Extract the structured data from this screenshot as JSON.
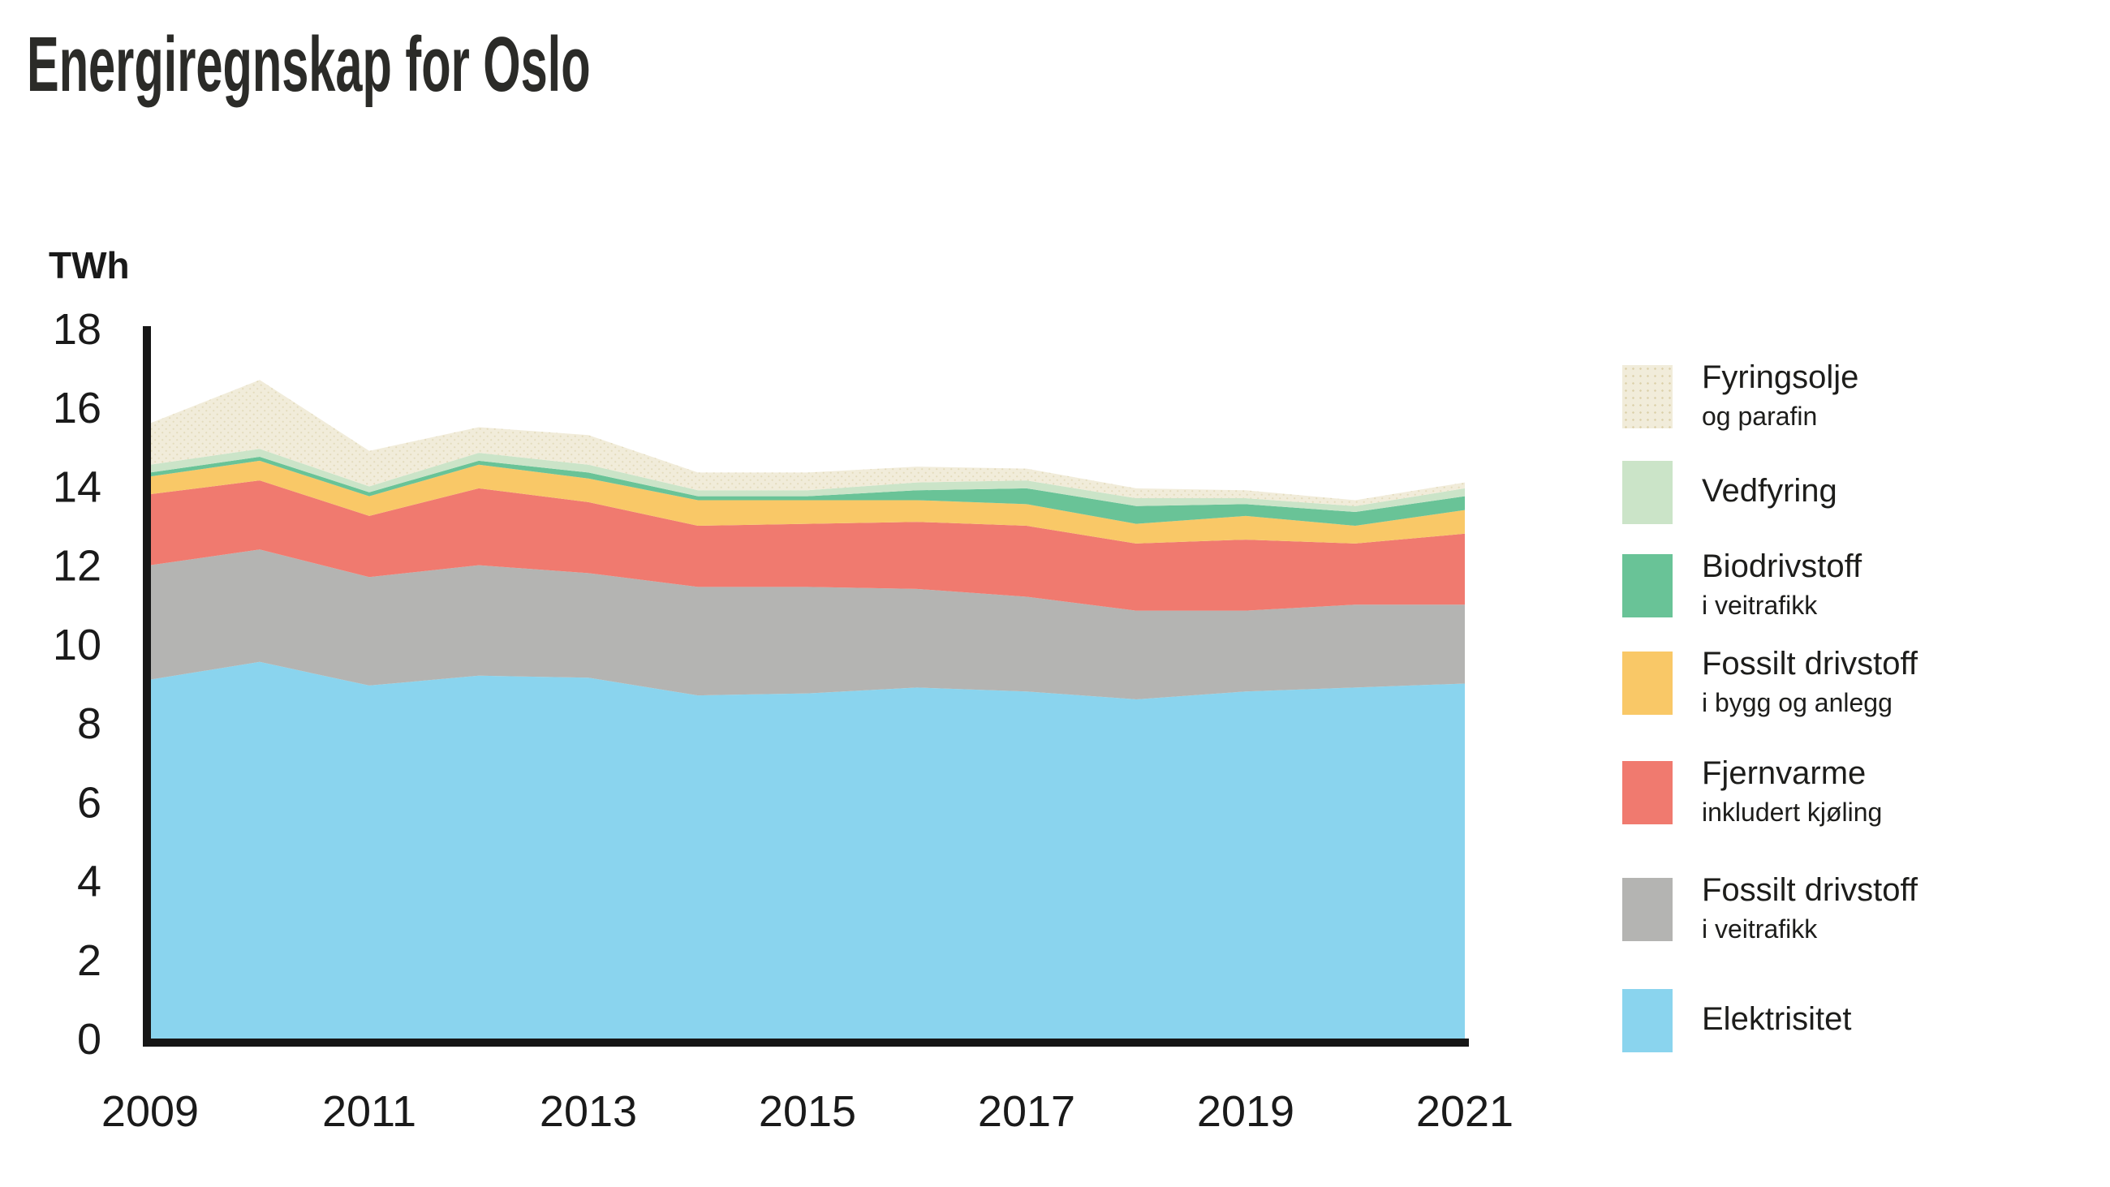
{
  "header": {
    "title": "Energiregnskap for Oslo"
  },
  "y_axis_unit": "TWh",
  "chart_data": {
    "type": "area",
    "stacked": true,
    "title": "Energiregnskap for Oslo",
    "ylabel": "TWh",
    "xlabel": "",
    "grid": false,
    "legend_position": "right",
    "x": [
      2009,
      2010,
      2011,
      2012,
      2013,
      2014,
      2015,
      2016,
      2017,
      2018,
      2019,
      2020,
      2021
    ],
    "x_tick_labels": [
      "2009",
      "2011",
      "2013",
      "2015",
      "2017",
      "2019",
      "2021"
    ],
    "y_axis": {
      "min": 0,
      "max": 18,
      "tick_step": 2
    },
    "series": [
      {
        "name": "Elektrisitet",
        "color": "#8AD4EE",
        "values": [
          9.1,
          9.55,
          8.95,
          9.2,
          9.15,
          8.7,
          8.75,
          8.9,
          8.8,
          8.6,
          8.8,
          8.9,
          9.0
        ]
      },
      {
        "name": "Fossilt drivstoff i veitrafikk",
        "color": "#B4B4B2",
        "values": [
          2.9,
          2.85,
          2.75,
          2.8,
          2.65,
          2.75,
          2.7,
          2.5,
          2.4,
          2.25,
          2.05,
          2.1,
          2.0
        ]
      },
      {
        "name": "Fjernvarme inkludert kjøling",
        "color": "#F07A6F",
        "values": [
          1.8,
          1.75,
          1.55,
          1.95,
          1.8,
          1.55,
          1.6,
          1.7,
          1.8,
          1.7,
          1.8,
          1.55,
          1.8
        ]
      },
      {
        "name": "Fossilt drivstoff i bygg og anlegg",
        "color": "#F9C867",
        "values": [
          0.45,
          0.5,
          0.5,
          0.6,
          0.6,
          0.65,
          0.6,
          0.55,
          0.55,
          0.5,
          0.6,
          0.45,
          0.6
        ]
      },
      {
        "name": "Biodrivstoff i veitrafikk",
        "color": "#69C397",
        "values": [
          0.1,
          0.1,
          0.1,
          0.1,
          0.15,
          0.1,
          0.1,
          0.25,
          0.4,
          0.45,
          0.3,
          0.35,
          0.35
        ]
      },
      {
        "name": "Vedfyring",
        "color": "#CBE4C8",
        "values": [
          0.2,
          0.2,
          0.15,
          0.2,
          0.2,
          0.15,
          0.15,
          0.2,
          0.2,
          0.2,
          0.15,
          0.15,
          0.2
        ]
      },
      {
        "name": "Fyringsolje og parafin",
        "color": "#F1ECDA",
        "texture": "dots",
        "values": [
          1.05,
          1.75,
          0.9,
          0.65,
          0.75,
          0.45,
          0.45,
          0.4,
          0.3,
          0.25,
          0.2,
          0.15,
          0.15
        ]
      }
    ]
  },
  "legend": {
    "items": [
      {
        "label": "Fyringsolje",
        "sublabel": "og parafin",
        "color": "#F1ECDA",
        "texture": "dots"
      },
      {
        "label": "Vedfyring",
        "sublabel": "",
        "color": "#CBE4C8"
      },
      {
        "label": "Biodrivstoff",
        "sublabel": "i veitrafikk",
        "color": "#69C397"
      },
      {
        "label": "Fossilt drivstoff",
        "sublabel": "i bygg og anlegg",
        "color": "#F9C867"
      },
      {
        "label": "Fjernvarme",
        "sublabel": "inkludert kjøling",
        "color": "#F07A6F"
      },
      {
        "label": "Fossilt drivstoff",
        "sublabel": "i veitrafikk",
        "color": "#B4B4B2"
      },
      {
        "label": "Elektrisitet",
        "sublabel": "",
        "color": "#8AD4EE"
      }
    ]
  }
}
